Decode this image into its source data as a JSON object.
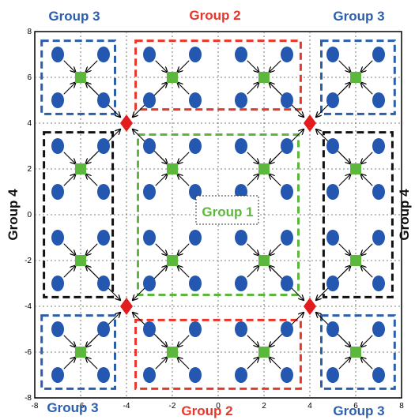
{
  "colors": {
    "group1": "#5cb73c",
    "group2": "#e8372a",
    "group3": "#2b5fab",
    "group4": "#111111",
    "node": "#2457b0",
    "head": "#5cb83c",
    "relay": "#e11d1d"
  },
  "group_labels": {
    "g1": "Group 1",
    "g2_top": "Group 2",
    "g2_bottom": "Group 2",
    "g3_tl": "Group 3",
    "g3_tr": "Group 3",
    "g3_bl": "Group 3",
    "g3_br": "Group 3",
    "g4_left": "Group 4",
    "g4_right": "Group 4"
  },
  "chart_data": {
    "type": "diagram",
    "xlim": [
      -8,
      8
    ],
    "ylim": [
      -8,
      8
    ],
    "x_ticks": [
      "-8",
      "-6",
      "-4",
      "-2",
      "0",
      "2",
      "4",
      "6",
      "8"
    ],
    "y_ticks": [
      "8",
      "6",
      "4",
      "2",
      "0",
      "-2",
      "-4",
      "-6",
      "-8"
    ],
    "grid": true,
    "cluster_heads": [
      {
        "x": -6,
        "y": 6
      },
      {
        "x": -2,
        "y": 6
      },
      {
        "x": 2,
        "y": 6
      },
      {
        "x": 6,
        "y": 6
      },
      {
        "x": -6,
        "y": 2
      },
      {
        "x": -2,
        "y": 2
      },
      {
        "x": 2,
        "y": 2
      },
      {
        "x": 6,
        "y": 2
      },
      {
        "x": -6,
        "y": -2
      },
      {
        "x": -2,
        "y": -2
      },
      {
        "x": 2,
        "y": -2
      },
      {
        "x": 6,
        "y": -2
      },
      {
        "x": -6,
        "y": -6
      },
      {
        "x": -2,
        "y": -6
      },
      {
        "x": 2,
        "y": -6
      },
      {
        "x": 6,
        "y": -6
      }
    ],
    "node_offsets": [
      [
        -1,
        1
      ],
      [
        1,
        1
      ],
      [
        -1,
        -1
      ],
      [
        1,
        -1
      ]
    ],
    "relays": [
      {
        "x": -4,
        "y": 4
      },
      {
        "x": 4,
        "y": 4
      },
      {
        "x": -4,
        "y": -4
      },
      {
        "x": 4,
        "y": -4
      }
    ],
    "relay_sources": {
      "r0": [
        [
          -6,
          6
        ],
        [
          -2,
          6
        ],
        [
          -6,
          2
        ],
        [
          -2,
          2
        ]
      ],
      "r1": [
        [
          2,
          6
        ],
        [
          6,
          6
        ],
        [
          2,
          2
        ],
        [
          6,
          2
        ]
      ],
      "r2": [
        [
          -6,
          -2
        ],
        [
          -2,
          -2
        ],
        [
          -6,
          -6
        ],
        [
          -2,
          -6
        ]
      ],
      "r3": [
        [
          2,
          -2
        ],
        [
          6,
          -2
        ],
        [
          2,
          -6
        ],
        [
          6,
          -6
        ]
      ]
    },
    "group_boxes": [
      {
        "group": "group3",
        "x": [
          -7.7,
          -4.5
        ],
        "y": [
          4.4,
          7.6
        ]
      },
      {
        "group": "group3",
        "x": [
          4.5,
          7.7
        ],
        "y": [
          4.4,
          7.6
        ]
      },
      {
        "group": "group3",
        "x": [
          -7.7,
          -4.5
        ],
        "y": [
          -7.6,
          -4.4
        ]
      },
      {
        "group": "group3",
        "x": [
          4.5,
          7.7
        ],
        "y": [
          -7.6,
          -4.4
        ]
      },
      {
        "group": "group2",
        "x": [
          -3.6,
          3.6
        ],
        "y": [
          4.6,
          7.6
        ]
      },
      {
        "group": "group2",
        "x": [
          -3.6,
          3.6
        ],
        "y": [
          -7.6,
          -4.6
        ]
      },
      {
        "group": "group4",
        "x": [
          -7.6,
          -4.6
        ],
        "y": [
          -3.6,
          3.6
        ]
      },
      {
        "group": "group4",
        "x": [
          4.6,
          7.6
        ],
        "y": [
          -3.6,
          3.6
        ]
      },
      {
        "group": "group1",
        "x": [
          -3.5,
          3.5
        ],
        "y": [
          -3.5,
          3.5
        ]
      }
    ]
  }
}
